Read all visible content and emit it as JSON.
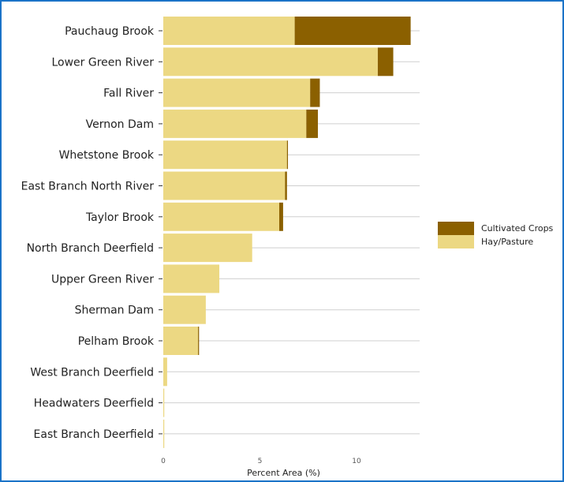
{
  "chart_data": {
    "type": "bar",
    "orientation": "horizontal",
    "stacked": true,
    "title": "",
    "xlabel": "Percent Area (%)",
    "ylabel": "",
    "xlim": [
      0,
      13
    ],
    "xticks": [
      0,
      5,
      10
    ],
    "grid": true,
    "legend_position": "right",
    "categories": [
      "Pauchaug Brook",
      "Lower Green River",
      "Fall River",
      "Vernon Dam",
      "Whetstone Brook",
      "East Branch North River",
      "Taylor Brook",
      "North Branch Deerfield",
      "Upper Green River",
      "Sherman Dam",
      "Pelham Brook",
      "West Branch Deerfield",
      "Headwaters Deerfield",
      "East Branch Deerfield"
    ],
    "series": [
      {
        "name": "Hay/Pasture",
        "color": "#ecd883",
        "values": [
          6.8,
          11.1,
          7.6,
          7.4,
          6.4,
          6.3,
          6.0,
          4.6,
          2.9,
          2.2,
          1.8,
          0.2,
          0.05,
          0.05
        ]
      },
      {
        "name": "Cultivated Crops",
        "color": "#8b6000",
        "values": [
          6.0,
          0.8,
          0.5,
          0.6,
          0.05,
          0.1,
          0.2,
          0.0,
          0.0,
          0.0,
          0.05,
          0.0,
          0.0,
          0.0
        ]
      }
    ],
    "legend": [
      "Cultivated Crops",
      "Hay/Pasture"
    ]
  }
}
